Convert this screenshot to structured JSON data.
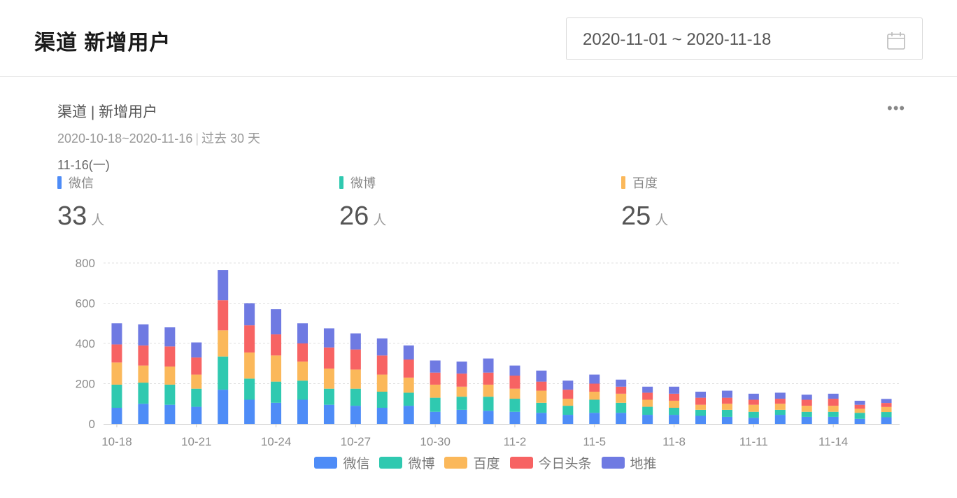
{
  "header": {
    "title": "渠道 新增用户",
    "date_range": "2020-11-01 ~ 2020-11-18"
  },
  "card": {
    "title": "渠道 | 新增用户",
    "period": "2020-10-18~2020-11-16",
    "period_note": "过去 30 天",
    "selected_date": "11-16(一)"
  },
  "metrics": [
    {
      "name": "微信",
      "value": "33",
      "unit": "人",
      "color": "#4e8cf7"
    },
    {
      "name": "微博",
      "value": "26",
      "unit": "人",
      "color": "#2fc9b0"
    },
    {
      "name": "百度",
      "value": "25",
      "unit": "人",
      "color": "#fbb85a"
    }
  ],
  "chart_data": {
    "type": "bar",
    "stacked": true,
    "categories": [
      "10-18",
      "10-19",
      "10-20",
      "10-21",
      "10-22",
      "10-23",
      "10-24",
      "10-25",
      "10-26",
      "10-27",
      "10-28",
      "10-29",
      "10-30",
      "10-31",
      "11-1",
      "11-2",
      "11-3",
      "11-4",
      "11-5",
      "11-6",
      "11-7",
      "11-8",
      "11-9",
      "11-10",
      "11-11",
      "11-12",
      "11-13",
      "11-14",
      "11-15",
      "11-16"
    ],
    "x_tick_labels": [
      "10-18",
      "10-21",
      "10-24",
      "10-27",
      "10-30",
      "11-2",
      "11-5",
      "11-8",
      "11-11",
      "11-14"
    ],
    "ylim": [
      0,
      800
    ],
    "y_ticks": [
      0,
      200,
      400,
      600,
      800
    ],
    "grid": true,
    "legend_position": "bottom",
    "series": [
      {
        "name": "微信",
        "color": "#4e8cf7",
        "values": [
          80,
          100,
          95,
          85,
          170,
          120,
          105,
          120,
          95,
          90,
          80,
          90,
          60,
          70,
          65,
          60,
          55,
          45,
          55,
          55,
          45,
          45,
          40,
          35,
          30,
          45,
          35,
          35,
          25,
          33
        ]
      },
      {
        "name": "微博",
        "color": "#2fc9b0",
        "values": [
          115,
          105,
          100,
          90,
          165,
          105,
          105,
          95,
          80,
          85,
          80,
          65,
          70,
          65,
          70,
          65,
          50,
          45,
          65,
          50,
          40,
          35,
          30,
          35,
          30,
          25,
          25,
          25,
          30,
          26
        ]
      },
      {
        "name": "百度",
        "color": "#fbb85a",
        "values": [
          110,
          85,
          90,
          70,
          130,
          130,
          130,
          95,
          100,
          95,
          85,
          75,
          65,
          50,
          60,
          50,
          60,
          35,
          40,
          45,
          35,
          35,
          25,
          30,
          35,
          30,
          30,
          30,
          20,
          25
        ]
      },
      {
        "name": "今日头条",
        "color": "#f76363",
        "values": [
          90,
          100,
          100,
          85,
          150,
          135,
          105,
          90,
          105,
          100,
          95,
          90,
          60,
          65,
          60,
          65,
          45,
          45,
          40,
          35,
          35,
          35,
          35,
          30,
          25,
          25,
          30,
          35,
          20,
          20
        ]
      },
      {
        "name": "地推",
        "color": "#6f7ae2",
        "values": [
          105,
          105,
          95,
          75,
          150,
          110,
          125,
          100,
          95,
          80,
          85,
          70,
          60,
          60,
          70,
          50,
          55,
          45,
          45,
          35,
          30,
          35,
          30,
          35,
          30,
          30,
          25,
          25,
          20,
          20
        ]
      }
    ]
  }
}
